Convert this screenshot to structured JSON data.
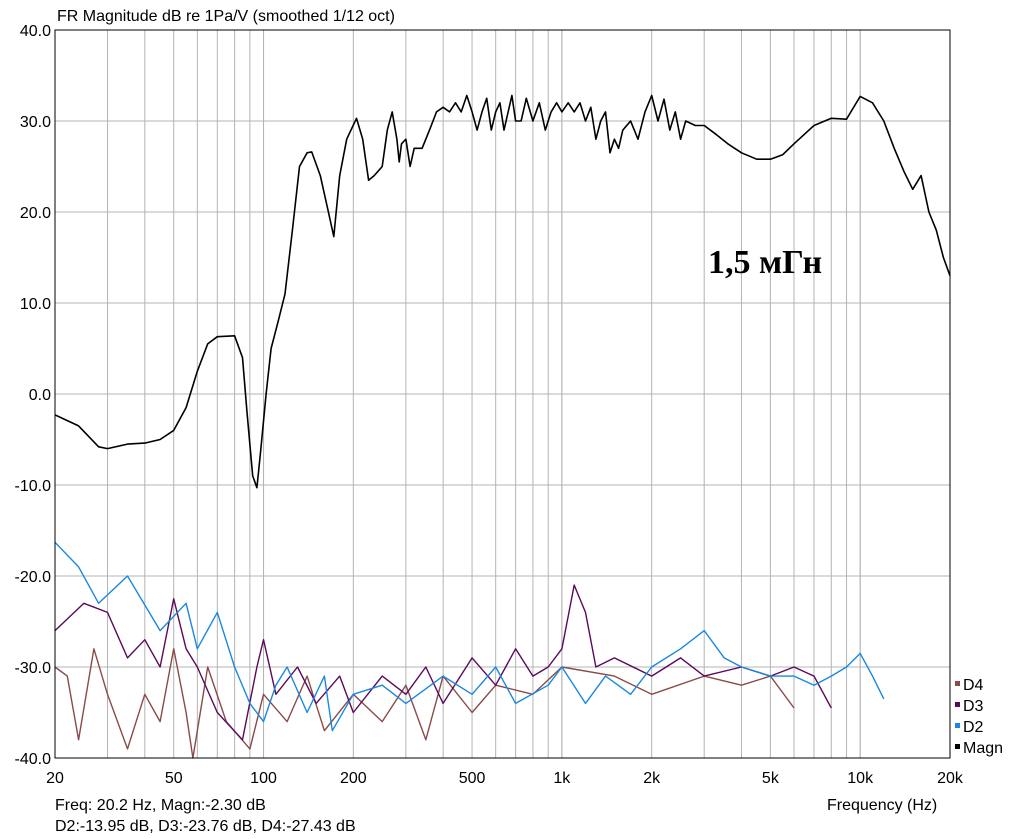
{
  "chart_data": {
    "type": "line",
    "title": "FR Magnitude dB re 1Pa/V (smoothed 1/12 oct)",
    "xlabel": "Frequency (Hz)",
    "ylabel": "",
    "xscale": "log",
    "xlim": [
      20,
      20000
    ],
    "ylim": [
      -40,
      40
    ],
    "grid": true,
    "legend_placement": "bottom-right",
    "x_ticks": [
      {
        "v": 20,
        "label": "20"
      },
      {
        "v": 50,
        "label": "50"
      },
      {
        "v": 100,
        "label": "100"
      },
      {
        "v": 200,
        "label": "200"
      },
      {
        "v": 500,
        "label": "500"
      },
      {
        "v": 1000,
        "label": "1k"
      },
      {
        "v": 2000,
        "label": "2k"
      },
      {
        "v": 5000,
        "label": "5k"
      },
      {
        "v": 10000,
        "label": "10k"
      },
      {
        "v": 20000,
        "label": "20k"
      }
    ],
    "y_ticks": [
      {
        "v": 40,
        "label": "40.0"
      },
      {
        "v": 30,
        "label": "30.0"
      },
      {
        "v": 20,
        "label": "20.0"
      },
      {
        "v": 10,
        "label": "10.0"
      },
      {
        "v": 0,
        "label": "0.0"
      },
      {
        "v": -10,
        "label": "-10.0"
      },
      {
        "v": -20,
        "label": "-20.0"
      },
      {
        "v": -30,
        "label": "-30.0"
      },
      {
        "v": -40,
        "label": "-40.0"
      }
    ],
    "annotation": "1,5 мГн",
    "cursor_readout": [
      "Freq: 20.2 Hz, Magn:-2.30 dB",
      "D2:-13.95 dB, D3:-23.76 dB, D4:-27.43 dB"
    ],
    "series": [
      {
        "name": "D4",
        "color": "#8a4a4a",
        "points": [
          [
            20,
            -30
          ],
          [
            22,
            -31
          ],
          [
            24,
            -38
          ],
          [
            27,
            -28
          ],
          [
            30,
            -33
          ],
          [
            35,
            -39
          ],
          [
            40,
            -33
          ],
          [
            45,
            -36
          ],
          [
            50,
            -28
          ],
          [
            55,
            -35
          ],
          [
            58,
            -40
          ],
          [
            65,
            -30
          ],
          [
            75,
            -36
          ],
          [
            90,
            -39
          ],
          [
            100,
            -33
          ],
          [
            120,
            -36
          ],
          [
            140,
            -31
          ],
          [
            160,
            -37
          ],
          [
            200,
            -33
          ],
          [
            250,
            -36
          ],
          [
            300,
            -32
          ],
          [
            350,
            -38
          ],
          [
            400,
            -31
          ],
          [
            500,
            -35
          ],
          [
            600,
            -32
          ],
          [
            800,
            -33
          ],
          [
            1000,
            -30
          ],
          [
            1500,
            -31
          ],
          [
            2000,
            -33
          ],
          [
            3000,
            -31
          ],
          [
            4000,
            -32
          ],
          [
            5000,
            -31
          ],
          [
            6000,
            -34.5
          ]
        ]
      },
      {
        "name": "D3",
        "color": "#5a0a5a",
        "points": [
          [
            20,
            -26
          ],
          [
            25,
            -23
          ],
          [
            30,
            -24
          ],
          [
            35,
            -29
          ],
          [
            40,
            -27
          ],
          [
            45,
            -30
          ],
          [
            50,
            -22.5
          ],
          [
            55,
            -28
          ],
          [
            60,
            -30
          ],
          [
            70,
            -35
          ],
          [
            85,
            -38
          ],
          [
            95,
            -30
          ],
          [
            100,
            -27
          ],
          [
            110,
            -33
          ],
          [
            130,
            -30
          ],
          [
            150,
            -34
          ],
          [
            180,
            -31
          ],
          [
            200,
            -35
          ],
          [
            250,
            -31
          ],
          [
            300,
            -33
          ],
          [
            350,
            -30
          ],
          [
            400,
            -34
          ],
          [
            500,
            -29
          ],
          [
            600,
            -32
          ],
          [
            700,
            -28
          ],
          [
            800,
            -31
          ],
          [
            900,
            -30
          ],
          [
            1000,
            -28
          ],
          [
            1100,
            -21
          ],
          [
            1200,
            -24
          ],
          [
            1300,
            -30
          ],
          [
            1500,
            -29
          ],
          [
            2000,
            -31
          ],
          [
            2500,
            -29
          ],
          [
            3000,
            -31
          ],
          [
            4000,
            -30
          ],
          [
            5000,
            -31
          ],
          [
            6000,
            -30
          ],
          [
            7000,
            -31
          ],
          [
            8000,
            -34.5
          ]
        ]
      },
      {
        "name": "D2",
        "color": "#1a88e0",
        "points": [
          [
            20,
            -16.3
          ],
          [
            24,
            -19
          ],
          [
            28,
            -23
          ],
          [
            35,
            -20
          ],
          [
            45,
            -26
          ],
          [
            55,
            -23
          ],
          [
            60,
            -28
          ],
          [
            70,
            -24
          ],
          [
            80,
            -30
          ],
          [
            90,
            -34
          ],
          [
            100,
            -36
          ],
          [
            110,
            -32
          ],
          [
            120,
            -30
          ],
          [
            140,
            -35
          ],
          [
            160,
            -31
          ],
          [
            170,
            -37
          ],
          [
            200,
            -33
          ],
          [
            250,
            -32
          ],
          [
            300,
            -34
          ],
          [
            400,
            -31
          ],
          [
            500,
            -33
          ],
          [
            600,
            -30
          ],
          [
            700,
            -34
          ],
          [
            900,
            -32
          ],
          [
            1000,
            -30
          ],
          [
            1200,
            -34
          ],
          [
            1400,
            -31
          ],
          [
            1700,
            -33
          ],
          [
            2000,
            -30
          ],
          [
            2500,
            -28
          ],
          [
            3000,
            -26
          ],
          [
            3500,
            -29
          ],
          [
            4000,
            -30
          ],
          [
            5000,
            -31
          ],
          [
            6000,
            -31
          ],
          [
            7000,
            -32
          ],
          [
            8000,
            -31
          ],
          [
            9000,
            -30
          ],
          [
            10000,
            -28.5
          ],
          [
            11000,
            -31
          ],
          [
            12000,
            -33.5
          ]
        ]
      },
      {
        "name": "Magn",
        "color": "#000000",
        "points": [
          [
            20,
            -2.3
          ],
          [
            24,
            -3.5
          ],
          [
            28,
            -5.8
          ],
          [
            30,
            -6
          ],
          [
            35,
            -5.5
          ],
          [
            40,
            -5.4
          ],
          [
            45,
            -5
          ],
          [
            50,
            -4
          ],
          [
            55,
            -1.5
          ],
          [
            60,
            2.5
          ],
          [
            65,
            5.5
          ],
          [
            70,
            6.3
          ],
          [
            80,
            6.4
          ],
          [
            85,
            4
          ],
          [
            88,
            -2
          ],
          [
            92,
            -9
          ],
          [
            95,
            -10.3
          ],
          [
            98,
            -6
          ],
          [
            102,
            0
          ],
          [
            106,
            5
          ],
          [
            112,
            8
          ],
          [
            118,
            11
          ],
          [
            125,
            18
          ],
          [
            132,
            25
          ],
          [
            140,
            26.5
          ],
          [
            145,
            26.6
          ],
          [
            155,
            24
          ],
          [
            165,
            20
          ],
          [
            172,
            17.3
          ],
          [
            180,
            24
          ],
          [
            190,
            28
          ],
          [
            205,
            30.3
          ],
          [
            215,
            28
          ],
          [
            225,
            23.5
          ],
          [
            235,
            24
          ],
          [
            250,
            25
          ],
          [
            260,
            29
          ],
          [
            270,
            31
          ],
          [
            280,
            28
          ],
          [
            285,
            25.5
          ],
          [
            290,
            27.5
          ],
          [
            300,
            28
          ],
          [
            310,
            25
          ],
          [
            320,
            27
          ],
          [
            340,
            27
          ],
          [
            360,
            29
          ],
          [
            380,
            31
          ],
          [
            400,
            31.5
          ],
          [
            420,
            31
          ],
          [
            440,
            32
          ],
          [
            460,
            31
          ],
          [
            480,
            32.8
          ],
          [
            500,
            31
          ],
          [
            520,
            29
          ],
          [
            540,
            31
          ],
          [
            560,
            32.5
          ],
          [
            580,
            29
          ],
          [
            600,
            31
          ],
          [
            620,
            32
          ],
          [
            640,
            29
          ],
          [
            680,
            32.8
          ],
          [
            700,
            30
          ],
          [
            730,
            30
          ],
          [
            760,
            32.5
          ],
          [
            800,
            30
          ],
          [
            840,
            32
          ],
          [
            880,
            29
          ],
          [
            920,
            31
          ],
          [
            960,
            32
          ],
          [
            1000,
            31
          ],
          [
            1050,
            32
          ],
          [
            1100,
            31
          ],
          [
            1150,
            32
          ],
          [
            1200,
            30
          ],
          [
            1250,
            31.5
          ],
          [
            1300,
            28
          ],
          [
            1350,
            30
          ],
          [
            1400,
            31
          ],
          [
            1450,
            26.5
          ],
          [
            1500,
            28
          ],
          [
            1550,
            27
          ],
          [
            1600,
            29
          ],
          [
            1700,
            30
          ],
          [
            1800,
            28
          ],
          [
            1900,
            31
          ],
          [
            2000,
            32.8
          ],
          [
            2100,
            30
          ],
          [
            2200,
            32.4
          ],
          [
            2300,
            29
          ],
          [
            2400,
            31
          ],
          [
            2500,
            28
          ],
          [
            2600,
            30
          ],
          [
            2800,
            29.5
          ],
          [
            3000,
            29.5
          ],
          [
            3300,
            28.5
          ],
          [
            3600,
            27.5
          ],
          [
            4000,
            26.5
          ],
          [
            4500,
            25.8
          ],
          [
            5000,
            25.8
          ],
          [
            5500,
            26.3
          ],
          [
            6000,
            27.5
          ],
          [
            7000,
            29.5
          ],
          [
            8000,
            30.3
          ],
          [
            9000,
            30.2
          ],
          [
            10000,
            32.7
          ],
          [
            11000,
            32
          ],
          [
            12000,
            30
          ],
          [
            13000,
            27
          ],
          [
            14000,
            24.5
          ],
          [
            15000,
            22.5
          ],
          [
            16000,
            24
          ],
          [
            17000,
            20
          ],
          [
            18000,
            18
          ],
          [
            19000,
            15
          ],
          [
            20000,
            13
          ]
        ]
      }
    ]
  }
}
